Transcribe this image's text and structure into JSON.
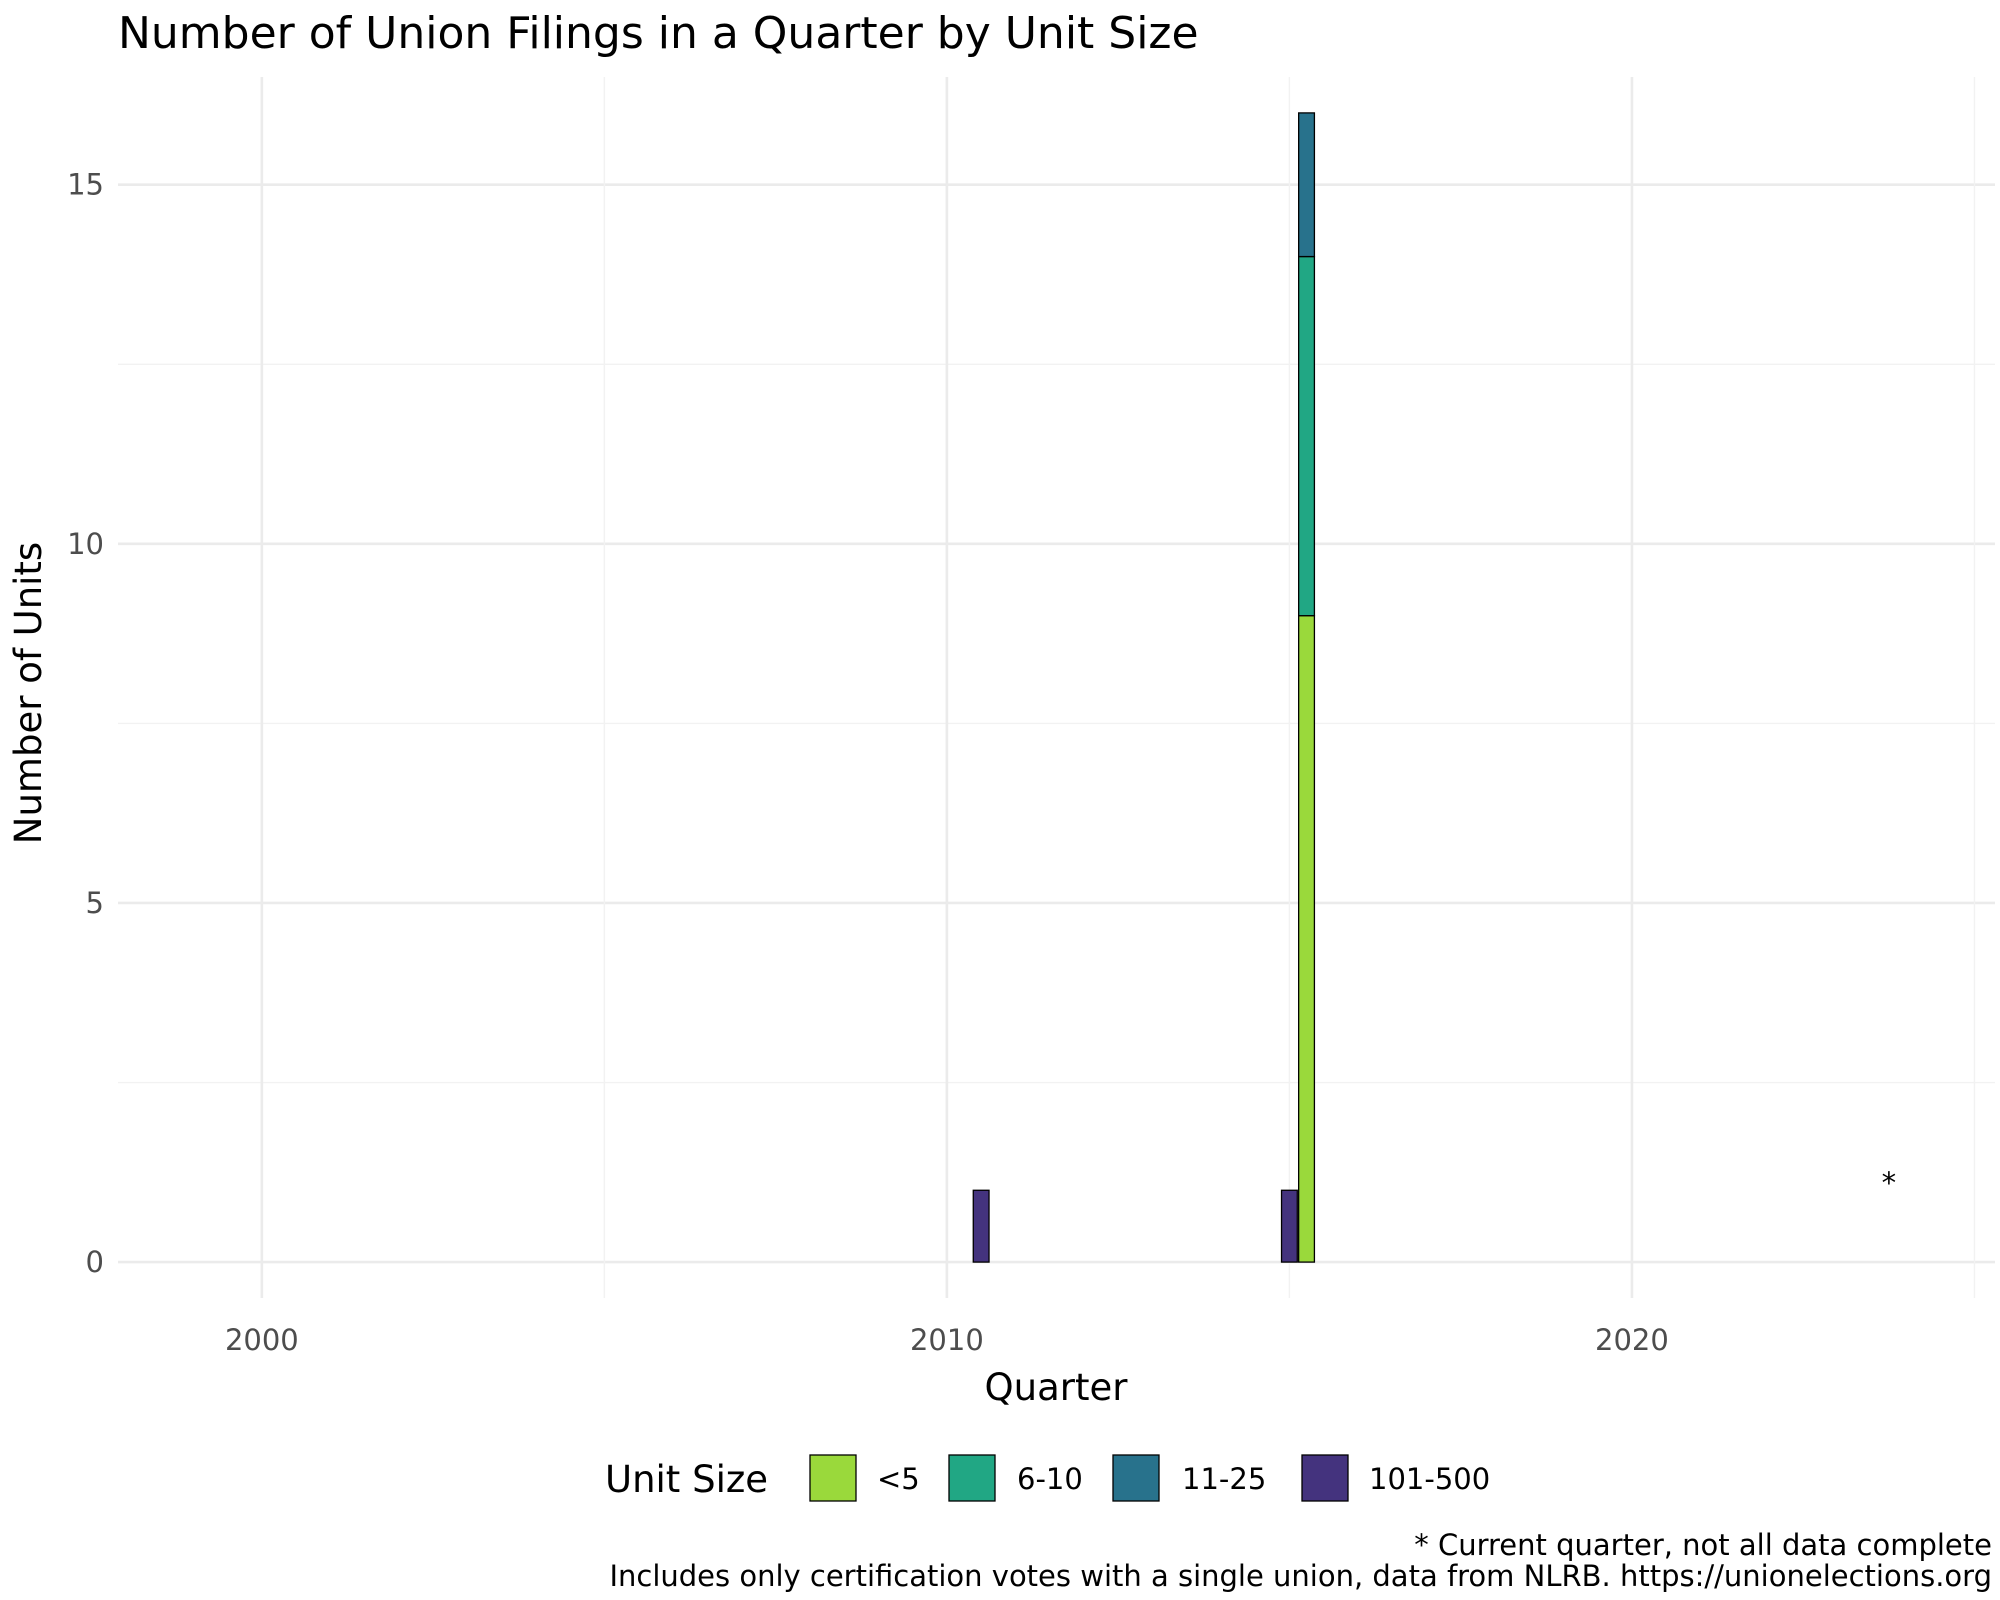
{
  "chart_data": {
    "type": "bar",
    "stacked": true,
    "title": "Number of Union Filings in a Quarter by Unit Size",
    "xlabel": "Quarter",
    "ylabel": "Number of Units",
    "x_ticks": [
      "2000",
      "2010",
      "2020"
    ],
    "y_ticks": [
      "0",
      "5",
      "10",
      "15"
    ],
    "xlim": [
      1997.9,
      2025.3
    ],
    "ylim": [
      -0.5,
      16.5
    ],
    "grid": true,
    "legend": {
      "title": "Unit Size",
      "position": "bottom",
      "entries": [
        {
          "label": "<5",
          "color": "#9ad93b"
        },
        {
          "label": "6-10",
          "color": "#21a784"
        },
        {
          "label": "11-25",
          "color": "#28728c"
        },
        {
          "label": "101-500",
          "color": "#44337e"
        }
      ]
    },
    "bars": [
      {
        "quarter": 2010.5,
        "segments": [
          {
            "series": "101-500",
            "value": 1
          }
        ]
      },
      {
        "quarter": 2015.0,
        "segments": [
          {
            "series": "101-500",
            "value": 1
          }
        ]
      },
      {
        "quarter": 2015.25,
        "segments": [
          {
            "series": "<5",
            "value": 9
          },
          {
            "series": "6-10",
            "value": 5
          },
          {
            "series": "11-25",
            "value": 2
          }
        ]
      }
    ],
    "annotation": {
      "text": "*",
      "x": 2023.75,
      "y": 1.1
    },
    "caption": [
      "* Current quarter, not all data complete",
      "Includes only certification votes with a single union, data from NLRB. https://unionelections.org"
    ]
  }
}
